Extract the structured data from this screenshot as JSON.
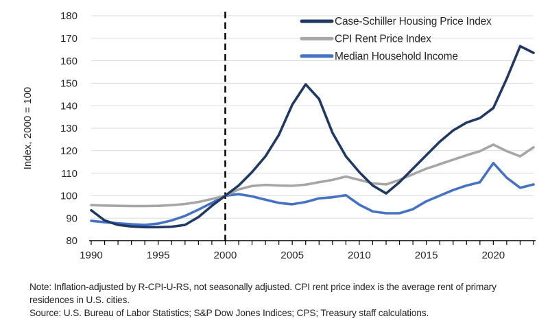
{
  "chart_data": {
    "type": "line",
    "title": "",
    "ylabel": "Index, 2000 = 100",
    "xlim": [
      1990,
      2023
    ],
    "ylim": [
      80,
      180
    ],
    "x": [
      1990,
      1991,
      1992,
      1993,
      1994,
      1995,
      1996,
      1997,
      1998,
      1999,
      2000,
      2001,
      2002,
      2003,
      2004,
      2005,
      2006,
      2007,
      2008,
      2009,
      2010,
      2011,
      2012,
      2013,
      2014,
      2015,
      2016,
      2017,
      2018,
      2019,
      2020,
      2021,
      2022,
      2023
    ],
    "xticks": [
      1990,
      1995,
      2000,
      2005,
      2010,
      2015,
      2020
    ],
    "yticks": [
      80,
      90,
      100,
      110,
      120,
      130,
      140,
      150,
      160,
      170,
      180
    ],
    "grid": "horizontal",
    "legend_position": "top-right-inside",
    "reference_line": {
      "x": 2000,
      "style": "dashed",
      "color": "#000000"
    },
    "series": [
      {
        "id": "case-schiller",
        "name": "Case-Schiller Housing Price Index",
        "color": "#1F3864",
        "values": [
          93.5,
          89,
          87,
          86.3,
          86,
          86,
          86.2,
          87,
          90.5,
          95.5,
          100,
          104.5,
          110.5,
          117.5,
          127,
          140.5,
          149.5,
          143,
          128,
          117.5,
          110.5,
          104.5,
          101,
          106,
          112,
          118,
          124,
          129,
          132.5,
          134.5,
          139,
          152,
          166.5,
          163.5
        ]
      },
      {
        "id": "cpi-rent",
        "name": "CPI Rent Price Index",
        "color": "#A6A6A6",
        "values": [
          95.8,
          95.6,
          95.5,
          95.4,
          95.4,
          95.5,
          95.8,
          96.3,
          97.2,
          98.5,
          100,
          102.8,
          104.3,
          104.8,
          104.5,
          104.4,
          104.9,
          106,
          107,
          108.5,
          107,
          105.5,
          105,
          107,
          109.5,
          112,
          114,
          116,
          118,
          119.8,
          122.7,
          119.8,
          117.5,
          121.5
        ]
      },
      {
        "id": "median-income",
        "name": "Median Household Income",
        "color": "#4472C4",
        "values": [
          88.8,
          88.2,
          87.7,
          87.3,
          87,
          87.6,
          89,
          91,
          93.8,
          96.8,
          100,
          100.7,
          99.7,
          98.2,
          96.8,
          96.2,
          97.2,
          98.8,
          99.3,
          100.2,
          96,
          93,
          92.2,
          92.2,
          94,
          97.5,
          100,
          102.5,
          104.5,
          106,
          114.5,
          108,
          103.5,
          105
        ]
      }
    ]
  },
  "notes": {
    "note": "Note: Inflation-adjusted by R-CPI-U-RS, not seasonally adjusted. CPI rent price index is the average rent of primary residences in U.S. cities.",
    "source": "Source: U.S. Bureau of Labor Statistics; S&P Dow Jones Indices; CPS; Treasury staff calculations."
  },
  "colors": {
    "gridline": "#D9D9D9",
    "axis": "#000000",
    "text": "#262626"
  }
}
